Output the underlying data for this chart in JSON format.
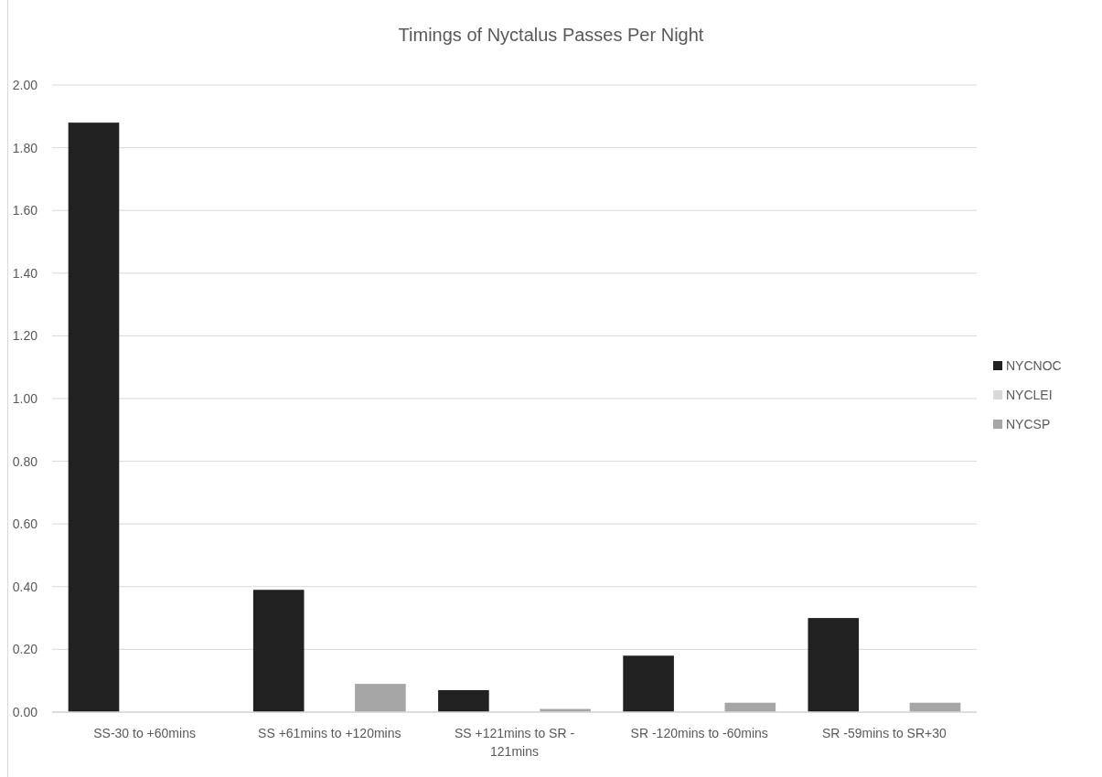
{
  "chart_data": {
    "type": "bar",
    "title": "Timings of Nyctalus Passes Per Night",
    "categories": [
      "SS-30 to +60mins",
      "SS +61mins to +120mins",
      "SS +121mins to SR - 121mins",
      "SR -120mins to -60mins",
      "SR -59mins to SR+30"
    ],
    "series": [
      {
        "name": "NYCNOC",
        "color": "#212121",
        "values": [
          1.88,
          0.39,
          0.07,
          0.18,
          0.3
        ]
      },
      {
        "name": "NYCLEI",
        "color": "#d9d9d9",
        "values": [
          0,
          0,
          0,
          0,
          0
        ]
      },
      {
        "name": "NYCSP",
        "color": "#a6a6a6",
        "values": [
          0,
          0.09,
          0.01,
          0.03,
          0.03
        ]
      }
    ],
    "ylim": [
      0,
      2
    ],
    "yticks": [
      {
        "value": 0,
        "label": "0.00"
      },
      {
        "value": 0.2,
        "label": "0.20"
      },
      {
        "value": 0.4,
        "label": "0.40"
      },
      {
        "value": 0.6,
        "label": "0.60"
      },
      {
        "value": 0.8,
        "label": "0.80"
      },
      {
        "value": 1,
        "label": "1.00"
      },
      {
        "value": 1.2,
        "label": "1.20"
      },
      {
        "value": 1.4,
        "label": "1.40"
      },
      {
        "value": 1.6,
        "label": "1.60"
      },
      {
        "value": 1.8,
        "label": "1.80"
      },
      {
        "value": 2,
        "label": "2.00"
      }
    ],
    "grid": "y",
    "legend": "right"
  }
}
